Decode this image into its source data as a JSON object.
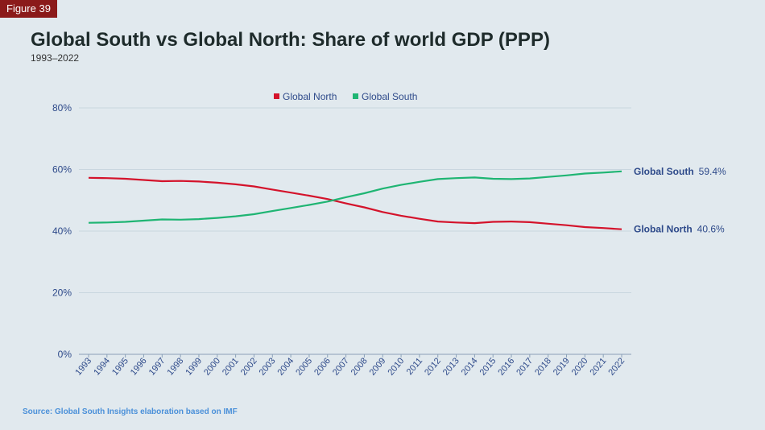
{
  "badge": "Figure 39",
  "title": "Global South vs Global North: Share of world GDP (PPP)",
  "subtitle": "1993–2022",
  "source": "Source: Global South Insights elaboration based on IMF",
  "chart_data": {
    "type": "line",
    "title": "Global South vs Global North: Share of world GDP (PPP)",
    "ylim": [
      0,
      80
    ],
    "yticks": [
      0,
      20,
      40,
      60,
      80
    ],
    "ytick_labels": [
      "0%",
      "20%",
      "40%",
      "60%",
      "80%"
    ],
    "legend_position": "top-center",
    "x": [
      "1993",
      "1994",
      "1995",
      "1996",
      "1997",
      "1998",
      "1999",
      "2000",
      "2001",
      "2002",
      "2003",
      "2004",
      "2005",
      "2006",
      "2007",
      "2008",
      "2009",
      "2010",
      "2011",
      "2012",
      "2013",
      "2014",
      "2015",
      "2016",
      "2017",
      "2018",
      "2019",
      "2020",
      "2021",
      "2022"
    ],
    "series": [
      {
        "name": "Global North",
        "color": "#d4132b",
        "end_label": "40.6%",
        "values": [
          57.3,
          57.2,
          57.0,
          56.6,
          56.2,
          56.3,
          56.1,
          55.7,
          55.2,
          54.5,
          53.5,
          52.5,
          51.5,
          50.4,
          49.0,
          47.7,
          46.2,
          45.0,
          44.0,
          43.1,
          42.8,
          42.6,
          43.0,
          43.1,
          42.9,
          42.4,
          41.9,
          41.3,
          41.0,
          40.6
        ]
      },
      {
        "name": "Global South",
        "color": "#1fb573",
        "end_label": "59.4%",
        "values": [
          42.7,
          42.8,
          43.0,
          43.4,
          43.8,
          43.7,
          43.9,
          44.3,
          44.8,
          45.5,
          46.5,
          47.5,
          48.5,
          49.6,
          51.0,
          52.3,
          53.8,
          55.0,
          56.0,
          56.9,
          57.2,
          57.4,
          57.0,
          56.9,
          57.1,
          57.6,
          58.1,
          58.7,
          59.0,
          59.4
        ]
      }
    ]
  }
}
